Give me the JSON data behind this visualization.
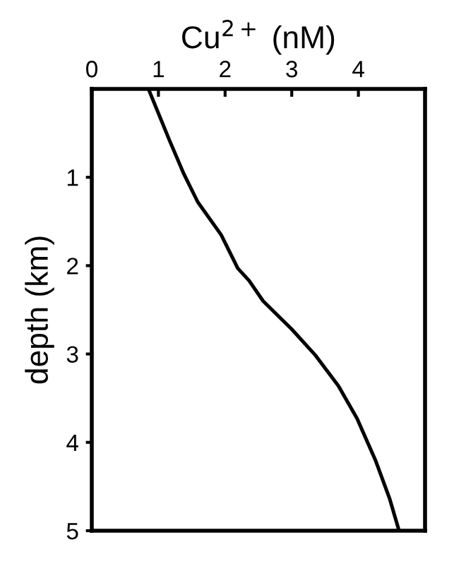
{
  "chart_data": {
    "type": "line",
    "xlabel": "Cu$^{2+}$ (nM)",
    "ylabel": "depth (km)",
    "xlim": [
      0,
      5
    ],
    "xticks": [
      0,
      1,
      2,
      3,
      4
    ],
    "ylim": [
      5,
      0
    ],
    "yticks": [
      1,
      2,
      3,
      4,
      5
    ],
    "series": [
      {
        "color": "#000000",
        "x": [
          0.85,
          1.17,
          1.38,
          1.59,
          1.94,
          2.19,
          2.36,
          2.57,
          3.0,
          3.35,
          3.7,
          3.98,
          4.26,
          4.47,
          4.61
        ],
        "values": [
          0,
          0.59,
          0.96,
          1.28,
          1.65,
          2.03,
          2.17,
          2.4,
          2.72,
          3.01,
          3.36,
          3.73,
          4.21,
          4.64,
          5.0
        ]
      }
    ],
    "grid": false,
    "legend": false,
    "marker": "none",
    "line_style": "solid"
  }
}
